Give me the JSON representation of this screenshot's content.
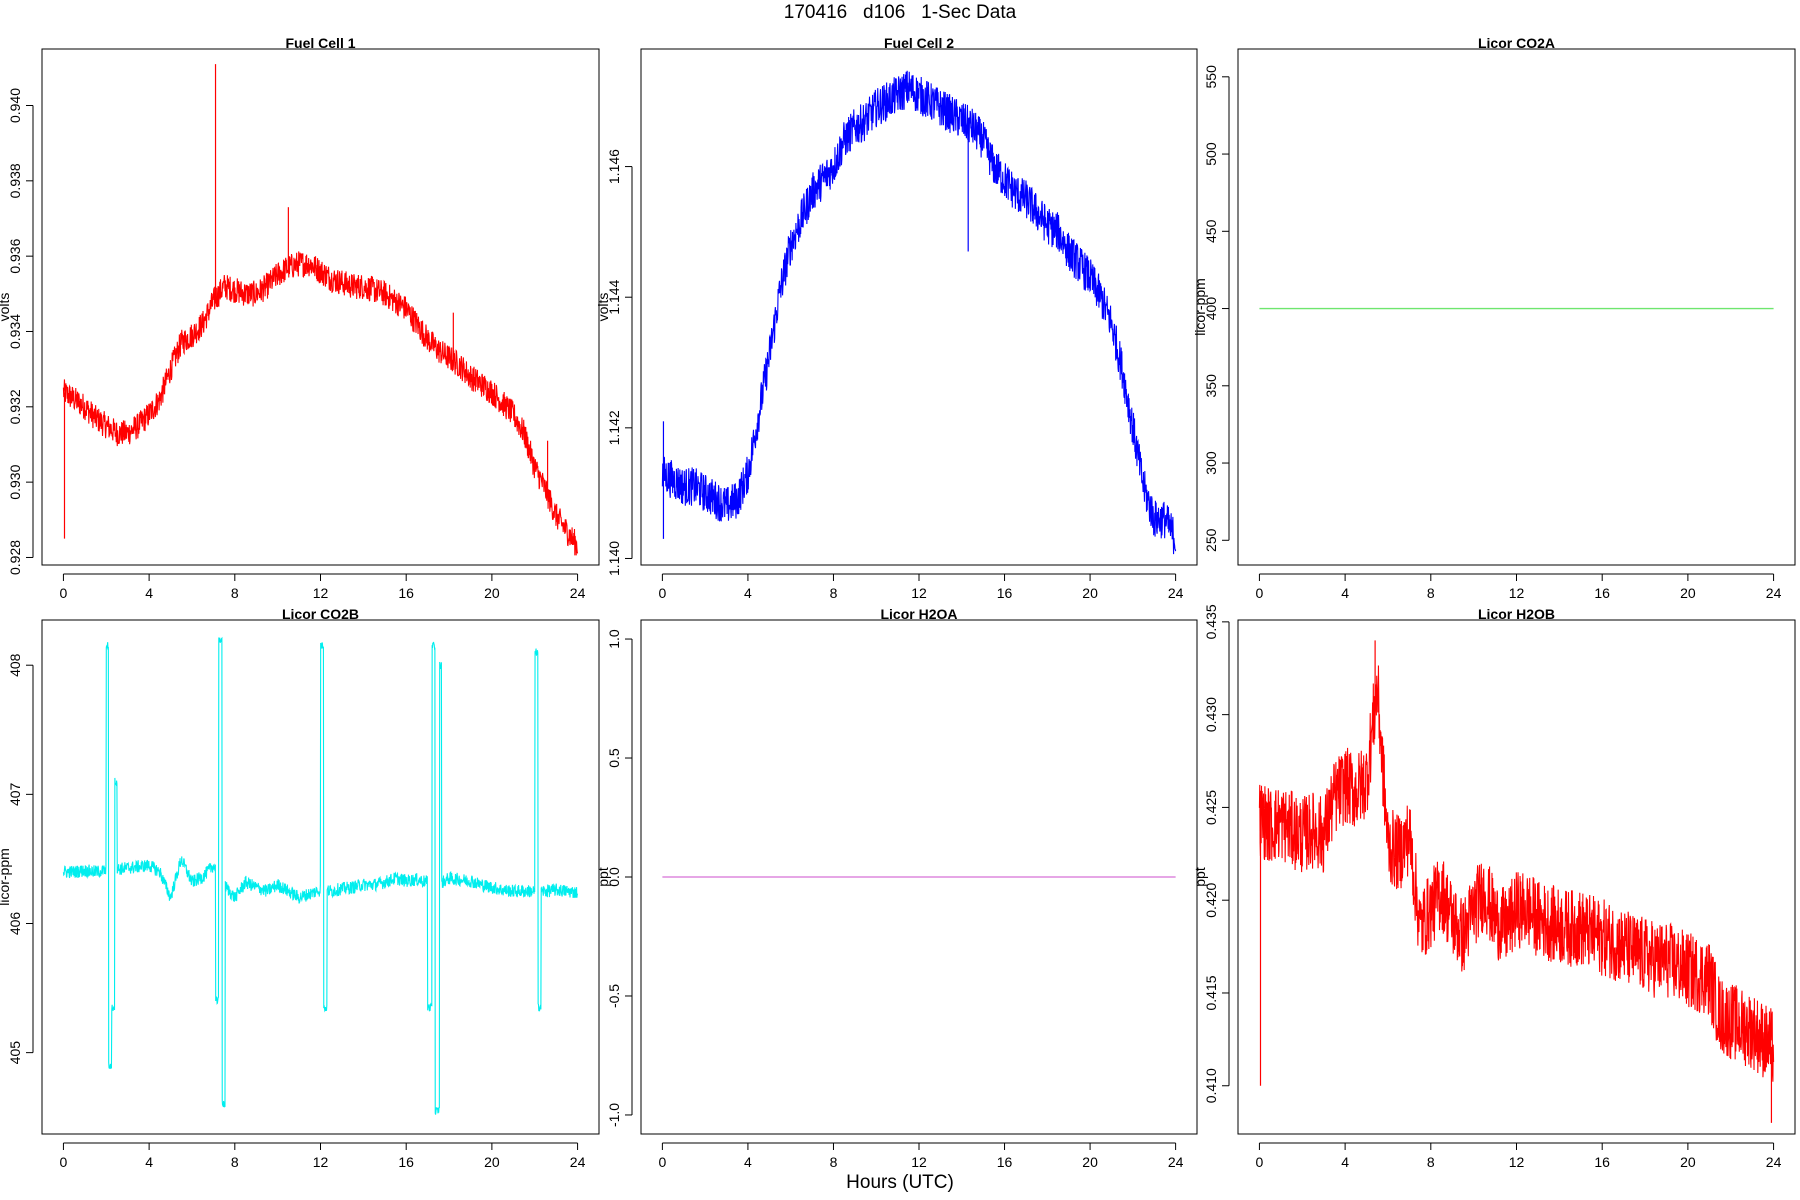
{
  "figure": {
    "title": "170416   d106   1-Sec Data",
    "xlabel": "Hours (UTC)"
  },
  "chart_data": [
    {
      "id": "fc1",
      "type": "line",
      "title": "Fuel Cell 1",
      "ylabel": "volts",
      "color": "#ff0000",
      "xlim": [
        -1,
        25
      ],
      "ylim": [
        0.9278,
        0.9415
      ],
      "xticks": [
        0,
        4,
        8,
        12,
        16,
        20,
        24
      ],
      "yticks": [
        0.928,
        0.93,
        0.932,
        0.934,
        0.936,
        0.938,
        0.94
      ],
      "ytick_labels": [
        "0.928",
        "0.930",
        "0.932",
        "0.934",
        "0.936",
        "0.938",
        "0.940"
      ],
      "x": [
        0,
        0.5,
        1,
        1.5,
        2,
        2.5,
        3,
        3.5,
        4,
        4.5,
        5,
        5.5,
        6,
        6.5,
        7,
        7.5,
        8,
        8.5,
        9,
        9.5,
        10,
        10.5,
        11,
        11.5,
        12,
        12.5,
        13,
        13.5,
        14,
        14.5,
        15,
        15.5,
        16,
        16.5,
        17,
        17.5,
        18,
        18.5,
        19,
        19.5,
        20,
        20.5,
        21,
        21.5,
        22,
        22.5,
        23,
        23.5,
        24
      ],
      "values": [
        0.9324,
        0.9322,
        0.932,
        0.9317,
        0.9315,
        0.9313,
        0.9313,
        0.9315,
        0.9318,
        0.9322,
        0.933,
        0.9337,
        0.9339,
        0.9342,
        0.9348,
        0.9352,
        0.9351,
        0.935,
        0.935,
        0.9352,
        0.9355,
        0.9357,
        0.9358,
        0.9358,
        0.9356,
        0.9354,
        0.9353,
        0.9352,
        0.9352,
        0.9351,
        0.935,
        0.9348,
        0.9346,
        0.9342,
        0.9338,
        0.9335,
        0.9333,
        0.9331,
        0.9328,
        0.9326,
        0.9324,
        0.9321,
        0.9318,
        0.9313,
        0.9304,
        0.9298,
        0.9291,
        0.9287,
        0.9283
      ],
      "noise": 0.00035,
      "spikes": [
        [
          0.05,
          0.9285
        ],
        [
          7.1,
          0.9411
        ],
        [
          10.5,
          0.9373
        ],
        [
          18.2,
          0.9345
        ],
        [
          22.6,
          0.9311
        ]
      ]
    },
    {
      "id": "fc2",
      "type": "line",
      "title": "Fuel Cell 2",
      "ylabel": "volts",
      "color": "#0000ff",
      "xlim": [
        -1,
        25
      ],
      "ylim": [
        1.1399,
        1.1478
      ],
      "xticks": [
        0,
        4,
        8,
        12,
        16,
        20,
        24
      ],
      "yticks": [
        1.14,
        1.142,
        1.144,
        1.146
      ],
      "ytick_labels": [
        "1.140",
        "1.142",
        "1.144",
        "1.146"
      ],
      "x": [
        0,
        0.5,
        1,
        1.5,
        2,
        2.5,
        3,
        3.5,
        4,
        4.5,
        5,
        5.5,
        6,
        6.5,
        7,
        7.5,
        8,
        8.5,
        9,
        9.5,
        10,
        10.5,
        11,
        11.5,
        12,
        12.5,
        13,
        13.5,
        14,
        14.5,
        15,
        15.5,
        16,
        16.5,
        17,
        17.5,
        18,
        18.5,
        19,
        19.5,
        20,
        20.5,
        21,
        21.5,
        22,
        22.5,
        23,
        23.5,
        24
      ],
      "values": [
        1.1413,
        1.1412,
        1.1411,
        1.1411,
        1.141,
        1.1409,
        1.1408,
        1.1409,
        1.1413,
        1.1422,
        1.1431,
        1.1441,
        1.1448,
        1.1452,
        1.1456,
        1.1458,
        1.146,
        1.1464,
        1.1466,
        1.1467,
        1.1469,
        1.147,
        1.1471,
        1.1472,
        1.1471,
        1.147,
        1.1469,
        1.1468,
        1.1467,
        1.1466,
        1.1464,
        1.146,
        1.1458,
        1.1456,
        1.1455,
        1.1453,
        1.1451,
        1.145,
        1.1447,
        1.1445,
        1.1443,
        1.144,
        1.1436,
        1.1429,
        1.142,
        1.1411,
        1.1406,
        1.1406,
        1.1403
      ],
      "noise": 0.0003,
      "spikes": [
        [
          0.05,
          1.1403
        ],
        [
          0.05,
          1.1421
        ],
        [
          14.3,
          1.1447
        ]
      ]
    },
    {
      "id": "co2a",
      "type": "line",
      "title": "Licor CO2A",
      "ylabel": "licor-ppm",
      "color": "#6ee66e",
      "xlim": [
        -1,
        25
      ],
      "ylim": [
        234,
        568
      ],
      "xticks": [
        0,
        4,
        8,
        12,
        16,
        20,
        24
      ],
      "yticks": [
        250,
        300,
        350,
        400,
        450,
        500,
        550
      ],
      "ytick_labels": [
        "250",
        "300",
        "350",
        "400",
        "450",
        "500",
        "550"
      ],
      "x": [
        0,
        24
      ],
      "values": [
        400,
        400
      ],
      "noise": 0,
      "spikes": []
    },
    {
      "id": "co2b",
      "type": "line",
      "title": "Licor CO2B",
      "ylabel": "licor-ppm",
      "color": "#00eeee",
      "xlim": [
        -1,
        25
      ],
      "ylim": [
        404.37,
        408.35
      ],
      "xticks": [
        0,
        4,
        8,
        12,
        16,
        20,
        24
      ],
      "yticks": [
        405,
        406,
        407,
        408
      ],
      "ytick_labels": [
        "405",
        "406",
        "407",
        "408"
      ],
      "x": [
        0,
        0.5,
        1,
        1.5,
        2,
        2.5,
        3,
        3.5,
        4,
        4.5,
        5,
        5.5,
        6,
        6.5,
        7,
        7.5,
        8,
        8.5,
        9,
        9.5,
        10,
        10.5,
        11,
        11.5,
        12,
        12.5,
        13,
        13.5,
        14,
        14.5,
        15,
        15.5,
        16,
        16.5,
        17,
        17.5,
        18,
        18.5,
        19,
        19.5,
        20,
        20.5,
        21,
        21.5,
        22,
        22.5,
        23,
        23.5,
        24
      ],
      "values": [
        406.4,
        406.4,
        406.41,
        406.4,
        406.41,
        406.42,
        406.43,
        406.44,
        406.45,
        406.4,
        406.2,
        406.5,
        406.32,
        406.36,
        406.45,
        406.3,
        406.2,
        406.32,
        406.28,
        406.25,
        406.3,
        406.25,
        406.2,
        406.23,
        406.26,
        406.25,
        406.27,
        406.28,
        406.3,
        406.3,
        406.32,
        406.35,
        406.33,
        406.34,
        406.32,
        406.3,
        406.35,
        406.34,
        406.33,
        406.3,
        406.28,
        406.26,
        406.25,
        406.25,
        406.25,
        406.25,
        406.26,
        406.25,
        406.24
      ],
      "noise": 0.05,
      "events": [
        [
          2.0,
          2.1,
          408.15
        ],
        [
          2.1,
          2.25,
          404.9
        ],
        [
          2.25,
          2.4,
          405.35
        ],
        [
          2.4,
          2.5,
          407.1
        ],
        [
          7.1,
          7.25,
          405.4
        ],
        [
          7.25,
          7.4,
          408.2
        ],
        [
          7.4,
          7.55,
          404.6
        ],
        [
          12.0,
          12.15,
          408.15
        ],
        [
          12.15,
          12.3,
          405.35
        ],
        [
          17.0,
          17.2,
          405.35
        ],
        [
          17.2,
          17.35,
          408.15
        ],
        [
          17.35,
          17.55,
          404.55
        ],
        [
          17.55,
          17.65,
          408.0
        ],
        [
          22.0,
          22.15,
          408.1
        ],
        [
          22.15,
          22.3,
          405.35
        ]
      ],
      "spikes": []
    },
    {
      "id": "h2oa",
      "type": "line",
      "title": "Licor H2OA",
      "ylabel": "ppt",
      "color": "#dd88dd",
      "xlim": [
        -1,
        25
      ],
      "ylim": [
        -1.08,
        1.08
      ],
      "xticks": [
        0,
        4,
        8,
        12,
        16,
        20,
        24
      ],
      "yticks": [
        -1.0,
        -0.5,
        0.0,
        0.5,
        1.0
      ],
      "ytick_labels": [
        "-1.0",
        "-0.5",
        "0.0",
        "0.5",
        "1.0"
      ],
      "x": [
        0,
        24
      ],
      "values": [
        0,
        0
      ],
      "noise": 0,
      "spikes": []
    },
    {
      "id": "h2ob",
      "type": "line",
      "title": "Licor H2OB",
      "ylabel": "ppt",
      "color": "#ff0000",
      "xlim": [
        -1,
        25
      ],
      "ylim": [
        0.4074,
        0.4351
      ],
      "xticks": [
        0,
        4,
        8,
        12,
        16,
        20,
        24
      ],
      "yticks": [
        0.41,
        0.415,
        0.42,
        0.425,
        0.43,
        0.435
      ],
      "ytick_labels": [
        "0.410",
        "0.415",
        "0.420",
        "0.425",
        "0.430",
        "0.435"
      ],
      "x": [
        0,
        0.5,
        1,
        1.5,
        2,
        2.5,
        3,
        3.5,
        4,
        4.5,
        5,
        5.5,
        6,
        6.5,
        7,
        7.5,
        8,
        8.5,
        9,
        9.5,
        10,
        10.5,
        11,
        11.5,
        12,
        12.5,
        13,
        13.5,
        14,
        14.5,
        15,
        15.5,
        16,
        16.5,
        17,
        17.5,
        18,
        18.5,
        19,
        19.5,
        20,
        20.5,
        21,
        21.5,
        22,
        22.5,
        23,
        23.5,
        24
      ],
      "values": [
        0.4245,
        0.424,
        0.4242,
        0.4238,
        0.4235,
        0.4238,
        0.4235,
        0.4255,
        0.4262,
        0.4258,
        0.4265,
        0.4315,
        0.423,
        0.4225,
        0.4235,
        0.4185,
        0.4195,
        0.4205,
        0.419,
        0.418,
        0.4195,
        0.4205,
        0.419,
        0.4185,
        0.4195,
        0.4195,
        0.419,
        0.4188,
        0.4186,
        0.4185,
        0.4185,
        0.4182,
        0.418,
        0.4178,
        0.4175,
        0.4172,
        0.417,
        0.4168,
        0.4168,
        0.4165,
        0.4162,
        0.416,
        0.4158,
        0.4138,
        0.4135,
        0.4132,
        0.413,
        0.4125,
        0.412
      ],
      "noise": 0.0021,
      "spikes": [
        [
          0.05,
          0.41
        ],
        [
          5.4,
          0.434
        ],
        [
          23.9,
          0.408
        ]
      ]
    }
  ]
}
